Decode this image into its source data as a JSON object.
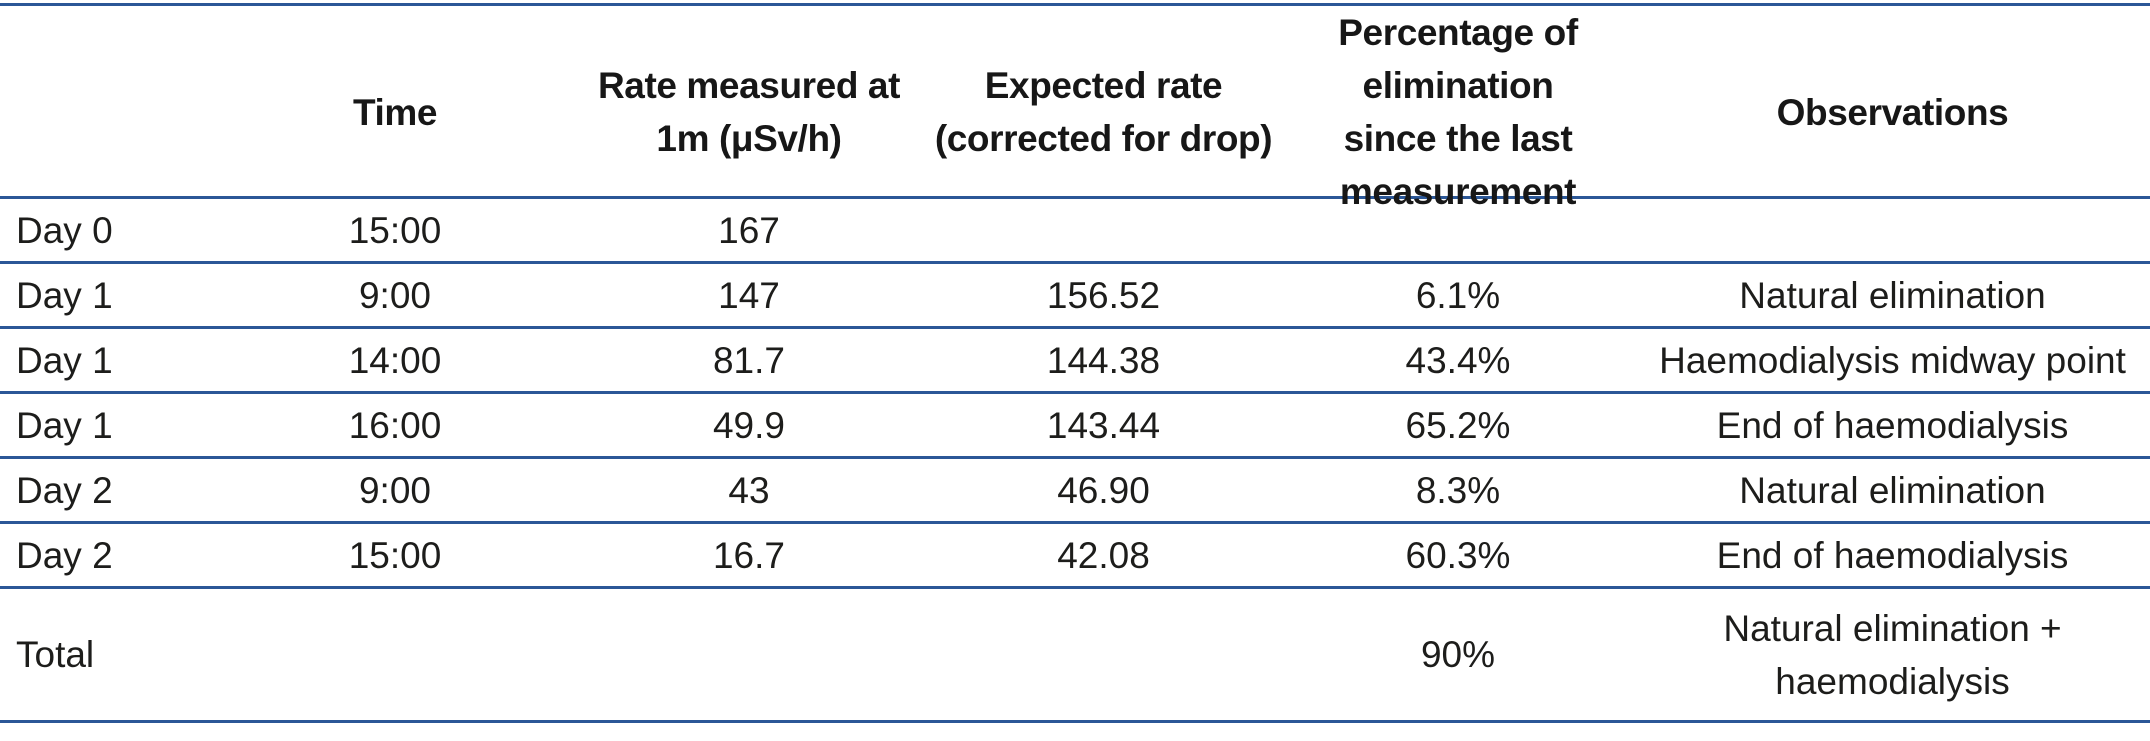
{
  "colors": {
    "rule_blue": "#2b5797",
    "text": "#1d1d1b"
  },
  "table": {
    "headers": {
      "day": "",
      "time": "Time",
      "rate": "Rate measured at\n1m (μSv/h)",
      "expected": "Expected rate\n(corrected for drop)",
      "pct": "Percentage of\nelimination\nsince the last\nmeasurement",
      "obs": "Observations"
    },
    "rows": [
      {
        "day": "Day 0",
        "time": "15:00",
        "rate": "167",
        "expected": "",
        "pct": "",
        "obs": ""
      },
      {
        "day": "Day 1",
        "time": "9:00",
        "rate": "147",
        "expected": "156.52",
        "pct": "6.1%",
        "obs": "Natural elimination"
      },
      {
        "day": "Day 1",
        "time": "14:00",
        "rate": "81.7",
        "expected": "144.38",
        "pct": "43.4%",
        "obs": "Haemodialysis midway point"
      },
      {
        "day": "Day 1",
        "time": "16:00",
        "rate": "49.9",
        "expected": "143.44",
        "pct": "65.2%",
        "obs": "End of haemodialysis"
      },
      {
        "day": "Day 2",
        "time": "9:00",
        "rate": "43",
        "expected": "46.90",
        "pct": "8.3%",
        "obs": "Natural elimination"
      },
      {
        "day": "Day 2",
        "time": "15:00",
        "rate": "16.7",
        "expected": "42.08",
        "pct": "60.3%",
        "obs": "End of haemodialysis"
      },
      {
        "day": "Total",
        "time": "",
        "rate": "",
        "expected": "",
        "pct": "90%",
        "obs": "Natural elimination +\nhaemodialysis"
      }
    ]
  }
}
